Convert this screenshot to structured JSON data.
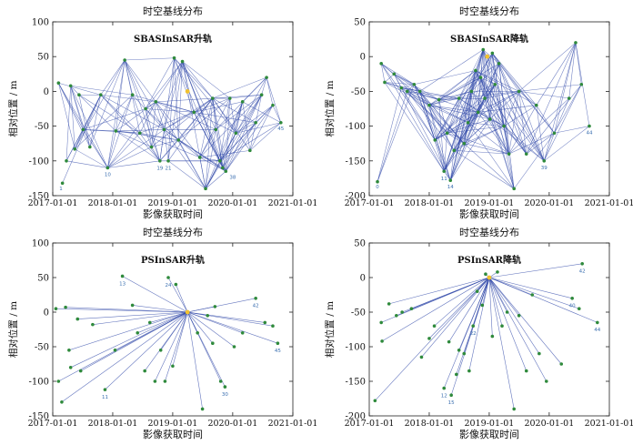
{
  "chart_data": [
    {
      "type": "network",
      "title": "时空基线分布",
      "subtitle": "SBASInSAR升轨",
      "xlabel": "影像获取时间",
      "ylabel": "相对位置 / m",
      "xticks": [
        "2017-01-01",
        "2018-01-01",
        "2019-01-01",
        "2020-01-01",
        "2021-01-01"
      ],
      "yticks": [
        100,
        50,
        0,
        -50,
        -100,
        -150
      ],
      "xlim": [
        "2017-01-01",
        "2021-01-01"
      ],
      "ylim": [
        -150,
        100
      ],
      "grid": false,
      "mode": "sbas",
      "colors": {
        "edge": "#2f47a8",
        "node": "#2f8a3c",
        "label": "#3a6fb0",
        "master": "#f2c230"
      },
      "master": {
        "date": "2019-04-01",
        "y": 0
      },
      "points": [
        {
          "date": "2017-02-05",
          "y": 12
        },
        {
          "date": "2017-03-01",
          "y": -132
        },
        {
          "date": "2017-03-25",
          "y": -100
        },
        {
          "date": "2017-04-20",
          "y": 8
        },
        {
          "date": "2017-05-15",
          "y": -83
        },
        {
          "date": "2017-06-10",
          "y": -5
        },
        {
          "date": "2017-07-05",
          "y": -55
        },
        {
          "date": "2017-08-15",
          "y": -80
        },
        {
          "date": "2017-10-20",
          "y": -5
        },
        {
          "date": "2017-12-01",
          "y": -110
        },
        {
          "date": "2018-01-20",
          "y": -57
        },
        {
          "date": "2018-03-15",
          "y": 45
        },
        {
          "date": "2018-05-01",
          "y": -5
        },
        {
          "date": "2018-06-15",
          "y": -60
        },
        {
          "date": "2018-07-20",
          "y": -25
        },
        {
          "date": "2018-08-25",
          "y": -80
        },
        {
          "date": "2018-09-20",
          "y": -15
        },
        {
          "date": "2018-10-15",
          "y": -100
        },
        {
          "date": "2018-11-10",
          "y": -55
        },
        {
          "date": "2018-12-05",
          "y": -100
        },
        {
          "date": "2019-01-10",
          "y": 48
        },
        {
          "date": "2019-02-05",
          "y": -70
        },
        {
          "date": "2019-03-01",
          "y": 43
        },
        {
          "date": "2019-05-10",
          "y": -30
        },
        {
          "date": "2019-06-15",
          "y": -95
        },
        {
          "date": "2019-07-20",
          "y": -140
        },
        {
          "date": "2019-09-01",
          "y": -10
        },
        {
          "date": "2019-09-20",
          "y": -55
        },
        {
          "date": "2019-10-15",
          "y": -100
        },
        {
          "date": "2019-11-01",
          "y": -110
        },
        {
          "date": "2019-11-20",
          "y": -115
        },
        {
          "date": "2019-12-15",
          "y": -10
        },
        {
          "date": "2020-01-20",
          "y": -60
        },
        {
          "date": "2020-03-01",
          "y": -15
        },
        {
          "date": "2020-04-15",
          "y": -85
        },
        {
          "date": "2020-05-20",
          "y": -45
        },
        {
          "date": "2020-06-25",
          "y": -5
        },
        {
          "date": "2020-07-25",
          "y": 20
        },
        {
          "date": "2020-09-01",
          "y": -20
        },
        {
          "date": "2020-10-20",
          "y": -45
        }
      ],
      "labels": [
        {
          "text": "1",
          "date": "2017-02-20",
          "y": -134
        },
        {
          "text": "10",
          "date": "2017-12-01",
          "y": -114
        },
        {
          "text": "19",
          "date": "2018-10-15",
          "y": -105
        },
        {
          "text": "21",
          "date": "2018-12-05",
          "y": -105
        },
        {
          "text": "38",
          "date": "2020-01-01",
          "y": -118
        },
        {
          "text": "45",
          "date": "2020-10-20",
          "y": -48
        }
      ]
    },
    {
      "type": "network",
      "title": "时空基线分布",
      "subtitle": "SBASInSAR降轨",
      "xlabel": "影像获取时间",
      "ylabel": "相对位置 / m",
      "xticks": [
        "2017-01-01",
        "2018-01-01",
        "2019-01-01",
        "2020-01-01",
        "2021-01-01"
      ],
      "yticks": [
        50,
        0,
        -50,
        -100,
        -150,
        -200
      ],
      "xlim": [
        "2017-01-01",
        "2021-01-01"
      ],
      "ylim": [
        -200,
        50
      ],
      "grid": false,
      "mode": "sbas",
      "colors": {
        "edge": "#2f47a8",
        "node": "#2f8a3c",
        "label": "#3a6fb0",
        "master": "#f2c230"
      },
      "master": {
        "date": "2018-12-20",
        "y": 0
      },
      "points": [
        {
          "date": "2017-02-20",
          "y": -180
        },
        {
          "date": "2017-03-15",
          "y": -10
        },
        {
          "date": "2017-04-05",
          "y": -37
        },
        {
          "date": "2017-06-01",
          "y": -25
        },
        {
          "date": "2017-07-15",
          "y": -45
        },
        {
          "date": "2017-08-20",
          "y": -50
        },
        {
          "date": "2017-10-01",
          "y": -40
        },
        {
          "date": "2017-11-05",
          "y": -50
        },
        {
          "date": "2018-01-01",
          "y": -70
        },
        {
          "date": "2018-02-05",
          "y": -120
        },
        {
          "date": "2018-03-01",
          "y": -62
        },
        {
          "date": "2018-04-01",
          "y": -165
        },
        {
          "date": "2018-04-20",
          "y": -110
        },
        {
          "date": "2018-05-10",
          "y": -178
        },
        {
          "date": "2018-06-01",
          "y": -135
        },
        {
          "date": "2018-07-01",
          "y": -60
        },
        {
          "date": "2018-08-01",
          "y": -125
        },
        {
          "date": "2018-08-25",
          "y": -95
        },
        {
          "date": "2018-09-15",
          "y": -50
        },
        {
          "date": "2018-10-10",
          "y": -20
        },
        {
          "date": "2018-10-25",
          "y": -80
        },
        {
          "date": "2018-11-10",
          "y": -30
        },
        {
          "date": "2018-11-25",
          "y": 10
        },
        {
          "date": "2018-12-05",
          "y": -60
        },
        {
          "date": "2019-01-05",
          "y": -90
        },
        {
          "date": "2019-01-20",
          "y": 5
        },
        {
          "date": "2019-02-05",
          "y": -40
        },
        {
          "date": "2019-03-01",
          "y": -10
        },
        {
          "date": "2019-04-01",
          "y": -100
        },
        {
          "date": "2019-05-01",
          "y": -140
        },
        {
          "date": "2019-06-01",
          "y": -190
        },
        {
          "date": "2019-07-01",
          "y": -50
        },
        {
          "date": "2019-08-15",
          "y": -140
        },
        {
          "date": "2019-10-15",
          "y": -70
        },
        {
          "date": "2019-12-01",
          "y": -150
        },
        {
          "date": "2020-02-01",
          "y": -110
        },
        {
          "date": "2020-05-01",
          "y": -60
        },
        {
          "date": "2020-06-10",
          "y": 20
        },
        {
          "date": "2020-07-15",
          "y": -40
        },
        {
          "date": "2020-09-01",
          "y": -100
        }
      ],
      "labels": [
        {
          "text": "0",
          "date": "2017-02-20",
          "y": -182
        },
        {
          "text": "11",
          "date": "2018-04-01",
          "y": -170
        },
        {
          "text": "14",
          "date": "2018-05-10",
          "y": -182
        },
        {
          "text": "39",
          "date": "2019-12-01",
          "y": -154
        },
        {
          "text": "44",
          "date": "2020-09-01",
          "y": -104
        }
      ]
    },
    {
      "type": "network",
      "title": "时空基线分布",
      "subtitle": "PSInSAR升轨",
      "xlabel": "影像获取时间",
      "ylabel": "相对位置 / m",
      "xticks": [
        "2017-01-01",
        "2018-01-01",
        "2019-01-01",
        "2020-01-01",
        "2021-01-01"
      ],
      "yticks": [
        100,
        50,
        0,
        -50,
        -100,
        -150
      ],
      "xlim": [
        "2017-01-01",
        "2021-01-01"
      ],
      "ylim": [
        -150,
        100
      ],
      "grid": false,
      "mode": "star",
      "colors": {
        "edge": "#2f47a8",
        "node": "#2f8a3c",
        "label": "#3a6fb0",
        "master": "#f2c230"
      },
      "master": {
        "date": "2019-04-01",
        "y": 0
      },
      "points": [
        {
          "date": "2017-01-20",
          "y": 5
        },
        {
          "date": "2017-02-05",
          "y": -100
        },
        {
          "date": "2017-02-25",
          "y": -130
        },
        {
          "date": "2017-03-20",
          "y": 7
        },
        {
          "date": "2017-04-10",
          "y": -55
        },
        {
          "date": "2017-04-20",
          "y": -80
        },
        {
          "date": "2017-06-01",
          "y": -10
        },
        {
          "date": "2017-06-20",
          "y": -85
        },
        {
          "date": "2017-09-01",
          "y": -18
        },
        {
          "date": "2017-11-15",
          "y": -112
        },
        {
          "date": "2018-01-15",
          "y": -55
        },
        {
          "date": "2018-03-01",
          "y": 52
        },
        {
          "date": "2018-05-01",
          "y": 10
        },
        {
          "date": "2018-06-01",
          "y": -30
        },
        {
          "date": "2018-07-15",
          "y": -85
        },
        {
          "date": "2018-08-15",
          "y": -15
        },
        {
          "date": "2018-09-15",
          "y": -100
        },
        {
          "date": "2018-10-20",
          "y": -55
        },
        {
          "date": "2018-11-15",
          "y": -100
        },
        {
          "date": "2018-12-05",
          "y": 50
        },
        {
          "date": "2019-01-01",
          "y": -78
        },
        {
          "date": "2019-01-20",
          "y": 40
        },
        {
          "date": "2019-06-01",
          "y": -30
        },
        {
          "date": "2019-07-01",
          "y": -140
        },
        {
          "date": "2019-08-01",
          "y": -5
        },
        {
          "date": "2019-09-01",
          "y": -45
        },
        {
          "date": "2019-09-15",
          "y": 8
        },
        {
          "date": "2019-10-20",
          "y": -100
        },
        {
          "date": "2019-11-15",
          "y": -108
        },
        {
          "date": "2020-01-10",
          "y": -50
        },
        {
          "date": "2020-03-01",
          "y": -30
        },
        {
          "date": "2020-05-20",
          "y": 20
        },
        {
          "date": "2020-07-15",
          "y": -15
        },
        {
          "date": "2020-09-01",
          "y": -20
        },
        {
          "date": "2020-10-01",
          "y": -45
        }
      ],
      "labels": [
        {
          "text": "13",
          "date": "2018-03-01",
          "y": 47
        },
        {
          "text": "24",
          "date": "2018-12-05",
          "y": 45
        },
        {
          "text": "42",
          "date": "2020-05-20",
          "y": 15
        },
        {
          "text": "11",
          "date": "2017-11-15",
          "y": -117
        },
        {
          "text": "30",
          "date": "2019-11-15",
          "y": -113
        },
        {
          "text": "45",
          "date": "2020-10-01",
          "y": -50
        }
      ]
    },
    {
      "type": "network",
      "title": "时空基线分布",
      "subtitle": "PSInSAR降轨",
      "xlabel": "影像获取时间",
      "ylabel": "相对位置 / m",
      "xticks": [
        "2017-01-01",
        "2018-01-01",
        "2019-01-01",
        "2020-01-01",
        "2021-01-01"
      ],
      "yticks": [
        50,
        0,
        -50,
        -100,
        -150,
        -200
      ],
      "xlim": [
        "2017-01-01",
        "2021-01-01"
      ],
      "ylim": [
        -200,
        50
      ],
      "grid": false,
      "mode": "star",
      "colors": {
        "edge": "#2f47a8",
        "node": "#2f8a3c",
        "label": "#3a6fb0",
        "master": "#f2c230"
      },
      "master": {
        "date": "2019-01-01",
        "y": 0
      },
      "points": [
        {
          "date": "2017-02-05",
          "y": -178
        },
        {
          "date": "2017-03-15",
          "y": -65
        },
        {
          "date": "2017-03-20",
          "y": -92
        },
        {
          "date": "2017-05-01",
          "y": -38
        },
        {
          "date": "2017-06-15",
          "y": -55
        },
        {
          "date": "2017-07-20",
          "y": -50
        },
        {
          "date": "2017-09-15",
          "y": -45
        },
        {
          "date": "2017-11-15",
          "y": -115
        },
        {
          "date": "2018-01-01",
          "y": -88
        },
        {
          "date": "2018-02-01",
          "y": -70
        },
        {
          "date": "2018-04-01",
          "y": -160
        },
        {
          "date": "2018-05-01",
          "y": -93
        },
        {
          "date": "2018-05-15",
          "y": -170
        },
        {
          "date": "2018-06-15",
          "y": -140
        },
        {
          "date": "2018-07-01",
          "y": -105
        },
        {
          "date": "2018-08-01",
          "y": -110
        },
        {
          "date": "2018-09-01",
          "y": -135
        },
        {
          "date": "2018-09-25",
          "y": -70
        },
        {
          "date": "2018-10-20",
          "y": -20
        },
        {
          "date": "2018-11-20",
          "y": -40
        },
        {
          "date": "2018-12-10",
          "y": 5
        },
        {
          "date": "2019-01-20",
          "y": -85
        },
        {
          "date": "2019-02-20",
          "y": 8
        },
        {
          "date": "2019-03-20",
          "y": -70
        },
        {
          "date": "2019-04-20",
          "y": -50
        },
        {
          "date": "2019-06-01",
          "y": -190
        },
        {
          "date": "2019-07-01",
          "y": -55
        },
        {
          "date": "2019-08-15",
          "y": -135
        },
        {
          "date": "2019-09-20",
          "y": -25
        },
        {
          "date": "2019-11-01",
          "y": -110
        },
        {
          "date": "2019-12-15",
          "y": -150
        },
        {
          "date": "2020-03-15",
          "y": -125
        },
        {
          "date": "2020-05-20",
          "y": -30
        },
        {
          "date": "2020-07-01",
          "y": -45
        },
        {
          "date": "2020-07-20",
          "y": 20
        },
        {
          "date": "2020-10-20",
          "y": -65
        }
      ],
      "labels": [
        {
          "text": "42",
          "date": "2020-07-20",
          "y": 15
        },
        {
          "text": "40",
          "date": "2020-05-20",
          "y": -35
        },
        {
          "text": "44",
          "date": "2020-10-20",
          "y": -70
        },
        {
          "text": "15",
          "date": "2018-05-15",
          "y": -175
        },
        {
          "text": "12",
          "date": "2018-04-01",
          "y": -165
        },
        {
          "text": "22",
          "date": "2018-09-25",
          "y": -75
        }
      ]
    }
  ]
}
